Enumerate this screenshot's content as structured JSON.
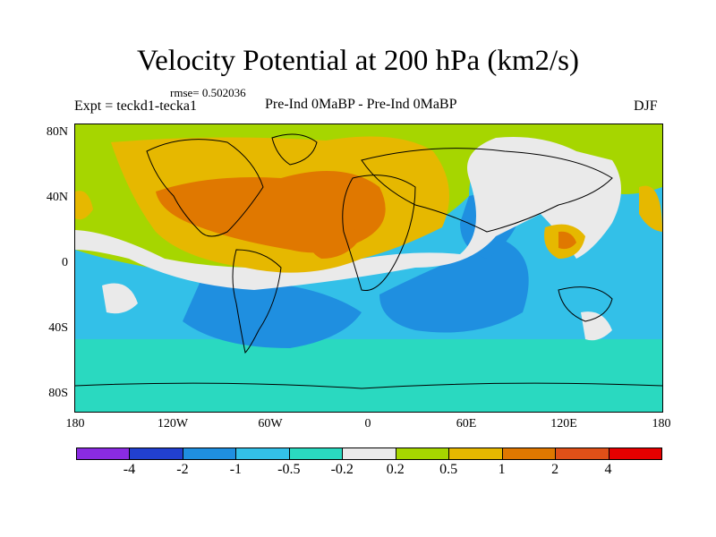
{
  "title": "Velocity Potential at 200 hPa (km2/s)",
  "rmse": "rmse= 0.502036",
  "expt": "Expt = teckd1-tecka1",
  "center_label": "Pre-Ind 0MaBP - Pre-Ind 0MaBP",
  "season": "DJF",
  "y_ticks": [
    "80N",
    "40N",
    "0",
    "40S",
    "80S"
  ],
  "x_ticks": [
    "180",
    "120W",
    "60W",
    "0",
    "60E",
    "120E",
    "180"
  ],
  "colorbar": {
    "labels": [
      "-4",
      "-2",
      "-1",
      "-0.5",
      "-0.2",
      "0.2",
      "0.5",
      "1",
      "2",
      "4"
    ],
    "colors": [
      "#8a2be2",
      "#2140d0",
      "#1f8fe0",
      "#33c0e8",
      "#2ad9c0",
      "#eaeaea",
      "#a6d600",
      "#e6b800",
      "#e07800",
      "#e05018",
      "#e60000"
    ]
  }
}
